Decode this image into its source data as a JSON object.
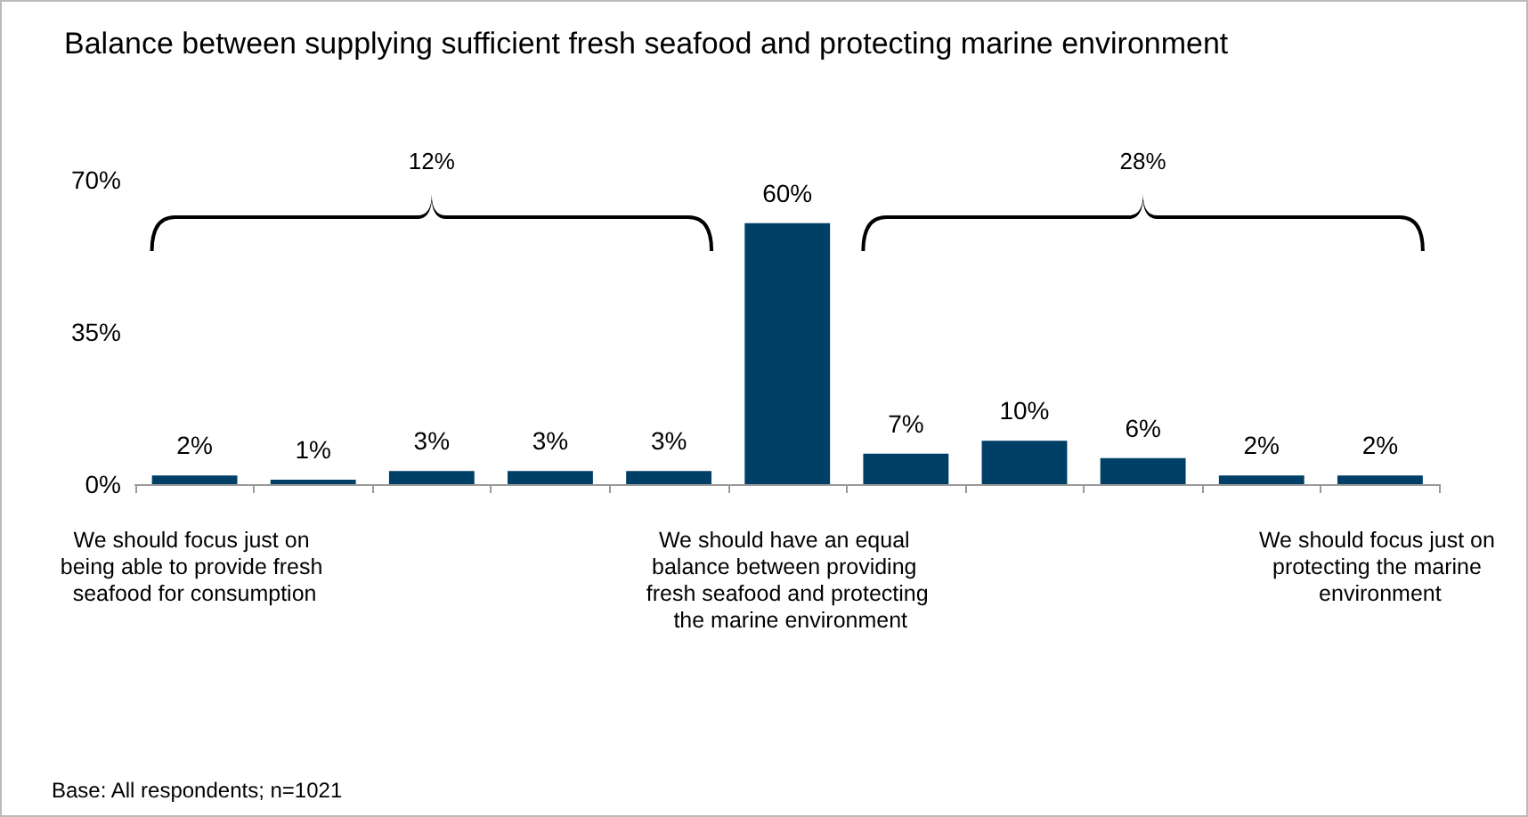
{
  "chart_data": {
    "type": "bar",
    "title": "Balance between supplying sufficient fresh seafood and protecting marine environment",
    "categories": [
      "We should focus just on being able to provide fresh seafood for consumption",
      null,
      null,
      null,
      null,
      "We should have an equal balance between providing fresh seafood and protecting the marine environment",
      null,
      null,
      null,
      null,
      "We should focus just on protecting the marine environment"
    ],
    "values": [
      2,
      1,
      3,
      3,
      3,
      60,
      7,
      10,
      6,
      2,
      2
    ],
    "value_labels": [
      "2%",
      "1%",
      "3%",
      "3%",
      "3%",
      "60%",
      "7%",
      "10%",
      "6%",
      "2%",
      "2%"
    ],
    "color": "#003f66",
    "ylim": [
      0,
      70
    ],
    "yticks": [
      {
        "value": 0,
        "label": "0%"
      },
      {
        "value": 35,
        "label": "35%"
      },
      {
        "value": 70,
        "label": "70%"
      }
    ],
    "annotations": [
      "12%",
      "28%",
      "Base: All respondents; n=1021"
    ]
  }
}
